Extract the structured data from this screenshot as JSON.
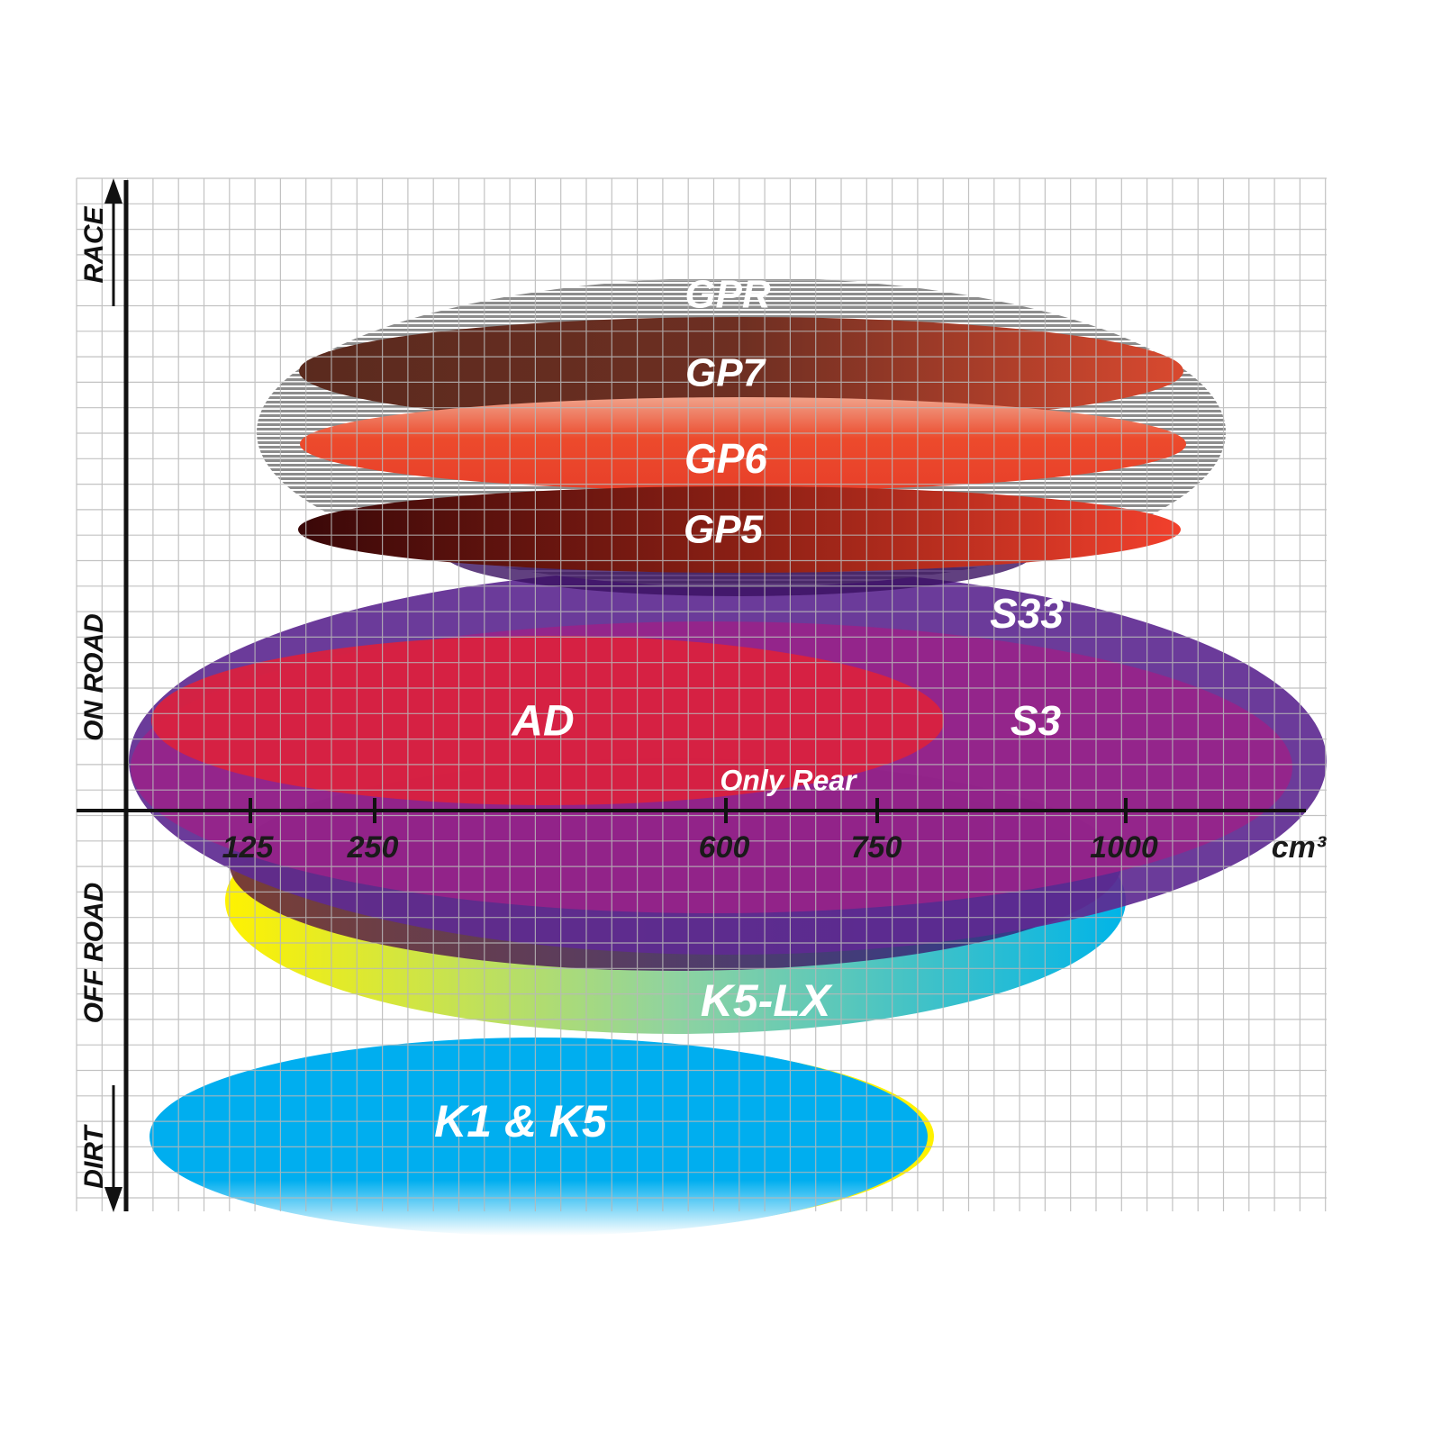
{
  "chart_data": {
    "type": "positioning-map",
    "title": "",
    "xlabel": "cm³",
    "x_ticks": [
      "125",
      "250",
      "600",
      "750",
      "1000"
    ],
    "y_labels": [
      "RACE",
      "ON ROAD",
      "OFF ROAD",
      "DIRT"
    ],
    "grid": true,
    "products": [
      {
        "name": "GPR",
        "color": "#8a8a8a"
      },
      {
        "name": "GP7",
        "color": "#7a3324"
      },
      {
        "name": "GP6",
        "color": "#e8452e"
      },
      {
        "name": "GP5",
        "color": "#a81f1a"
      },
      {
        "name": "S33",
        "color": "#5e2a91"
      },
      {
        "name": "S3",
        "color": "#9b2288"
      },
      {
        "name": "AD",
        "color": "#d9213f"
      },
      {
        "name": "Only Rear",
        "color": "#8e2a6e"
      },
      {
        "name": "K5-LX",
        "color": "#5ec7c0"
      },
      {
        "name": "K1 & K5",
        "color": "#00aeef"
      }
    ]
  }
}
